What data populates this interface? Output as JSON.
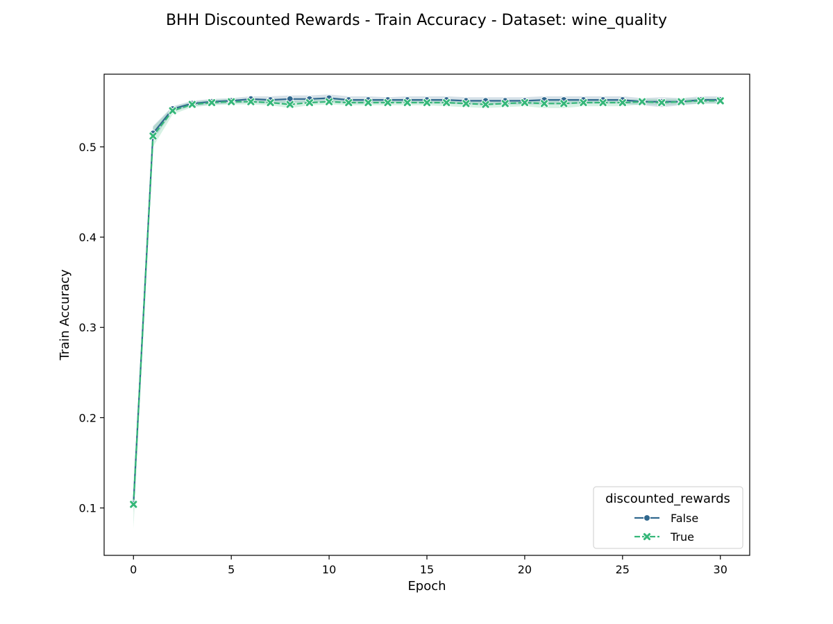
{
  "chart_data": {
    "type": "line",
    "title": "BHH Discounted Rewards - Train Accuracy - Dataset: wine_quality",
    "xlabel": "Epoch",
    "ylabel": "Train Accuracy",
    "xlim": [
      -1.5,
      31.5
    ],
    "ylim": [
      0.0475,
      0.5805
    ],
    "x_ticks": [
      0,
      5,
      10,
      15,
      20,
      25,
      30
    ],
    "y_ticks": [
      0.1,
      0.2,
      0.3,
      0.4,
      0.5
    ],
    "grid": false,
    "legend_placement": "lower-right",
    "legend_title": "discounted_rewards",
    "x": [
      0,
      1,
      2,
      3,
      4,
      5,
      6,
      7,
      8,
      9,
      10,
      11,
      12,
      13,
      14,
      15,
      16,
      17,
      18,
      19,
      20,
      21,
      22,
      23,
      24,
      25,
      26,
      27,
      28,
      29,
      30
    ],
    "series": [
      {
        "name": "False",
        "color": "#30688e",
        "marker": "circle",
        "linestyle": "solid",
        "values": [
          0.105,
          0.515,
          0.542,
          0.548,
          0.55,
          0.551,
          0.553,
          0.552,
          0.553,
          0.553,
          0.554,
          0.552,
          0.552,
          0.552,
          0.552,
          0.552,
          0.552,
          0.551,
          0.551,
          0.551,
          0.551,
          0.552,
          0.552,
          0.552,
          0.552,
          0.552,
          0.55,
          0.55,
          0.55,
          0.552,
          0.552
        ],
        "ci_low": [
          0.095,
          0.507,
          0.539,
          0.545,
          0.547,
          0.548,
          0.549,
          0.548,
          0.549,
          0.549,
          0.55,
          0.548,
          0.548,
          0.549,
          0.549,
          0.548,
          0.548,
          0.547,
          0.547,
          0.547,
          0.547,
          0.547,
          0.547,
          0.548,
          0.548,
          0.548,
          0.546,
          0.544,
          0.546,
          0.548,
          0.548
        ],
        "ci_high": [
          0.115,
          0.523,
          0.545,
          0.551,
          0.553,
          0.554,
          0.556,
          0.556,
          0.557,
          0.557,
          0.558,
          0.556,
          0.556,
          0.555,
          0.556,
          0.556,
          0.556,
          0.555,
          0.555,
          0.555,
          0.555,
          0.556,
          0.556,
          0.556,
          0.556,
          0.556,
          0.554,
          0.555,
          0.554,
          0.556,
          0.556
        ]
      },
      {
        "name": "True",
        "color": "#35b779",
        "marker": "x-filled",
        "linestyle": "dashed",
        "values": [
          0.104,
          0.512,
          0.54,
          0.547,
          0.549,
          0.55,
          0.55,
          0.549,
          0.547,
          0.549,
          0.55,
          0.549,
          0.549,
          0.549,
          0.549,
          0.549,
          0.549,
          0.548,
          0.547,
          0.548,
          0.549,
          0.548,
          0.548,
          0.549,
          0.549,
          0.549,
          0.55,
          0.549,
          0.55,
          0.551,
          0.551
        ],
        "ci_low": [
          0.077,
          0.5,
          0.536,
          0.544,
          0.546,
          0.547,
          0.547,
          0.546,
          0.543,
          0.546,
          0.547,
          0.546,
          0.546,
          0.546,
          0.546,
          0.546,
          0.545,
          0.544,
          0.543,
          0.544,
          0.545,
          0.543,
          0.543,
          0.545,
          0.545,
          0.545,
          0.547,
          0.546,
          0.547,
          0.548,
          0.548
        ],
        "ci_high": [
          0.125,
          0.522,
          0.544,
          0.55,
          0.552,
          0.553,
          0.553,
          0.552,
          0.551,
          0.552,
          0.553,
          0.552,
          0.552,
          0.552,
          0.552,
          0.552,
          0.552,
          0.551,
          0.551,
          0.551,
          0.552,
          0.552,
          0.552,
          0.552,
          0.552,
          0.552,
          0.553,
          0.553,
          0.553,
          0.554,
          0.554
        ]
      }
    ]
  }
}
